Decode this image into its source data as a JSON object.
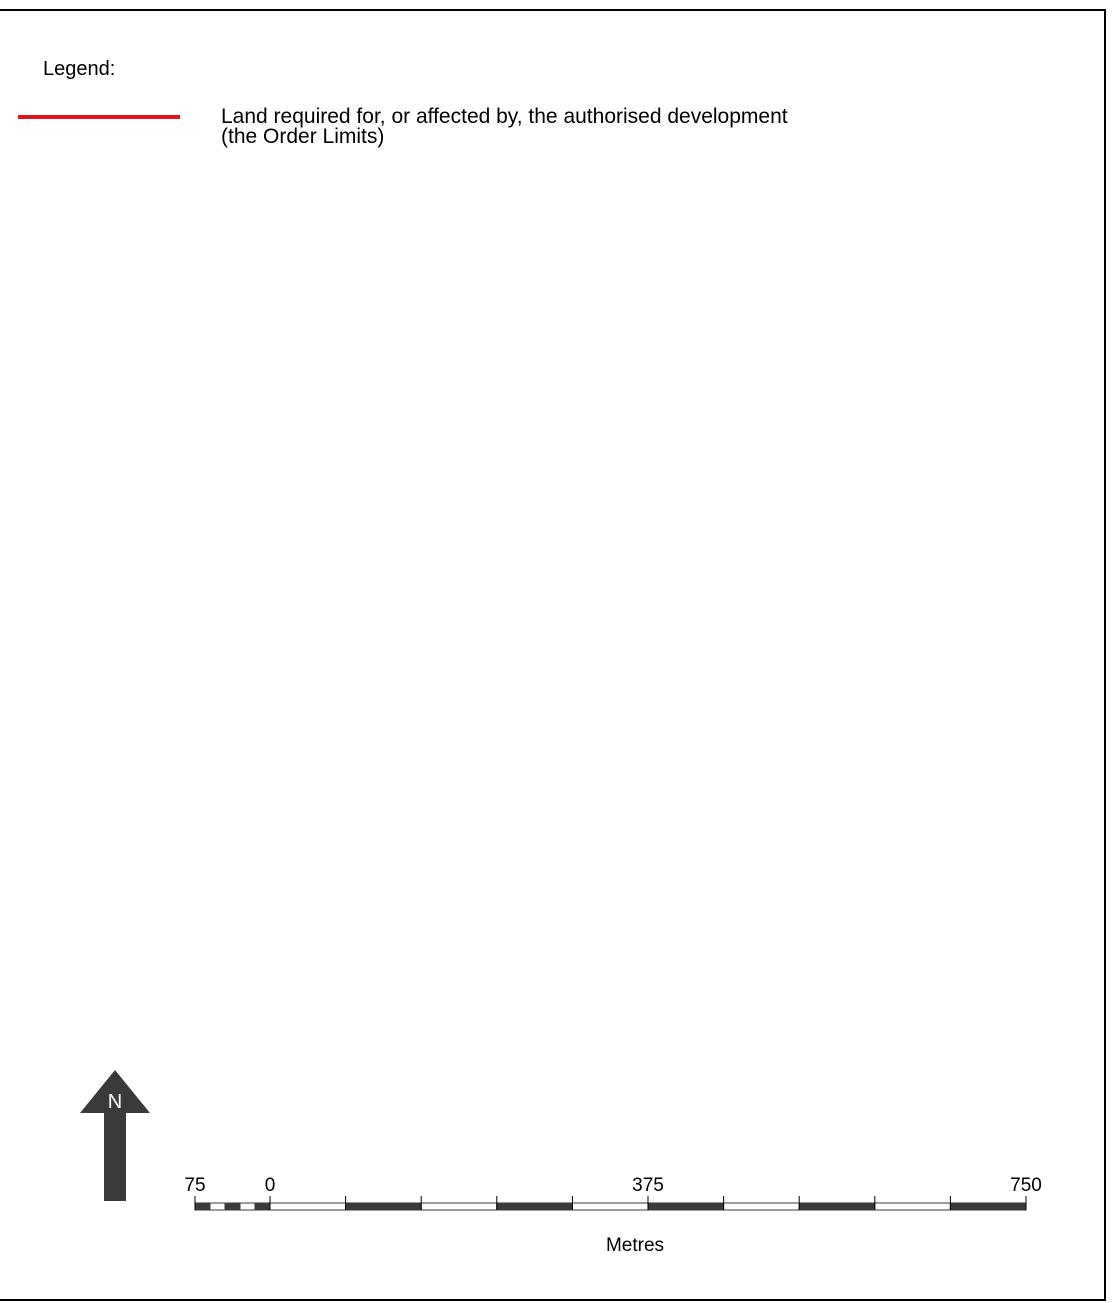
{
  "legend": {
    "title": "Legend:",
    "items": [
      {
        "label_line1": "Land required for, or affected by, the authorised development",
        "label_line2": "(the Order Limits)",
        "color": "#e3121b"
      }
    ]
  },
  "north_arrow": {
    "label": "N",
    "color": "#3a3a3a"
  },
  "scale_bar": {
    "unit_label": "Metres",
    "tick_labels": [
      "75",
      "0",
      "375",
      "750"
    ],
    "dark_color": "#3a3a3a"
  }
}
